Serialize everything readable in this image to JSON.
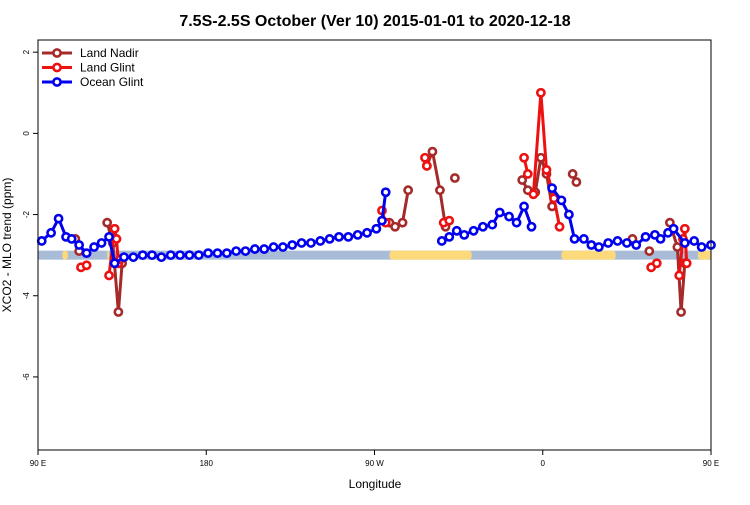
{
  "chart_data": {
    "type": "line",
    "title": "7.5S-2.5S October (Ver 10)   2015-01-01 to 2020-12-18",
    "xlabel": "Longitude",
    "ylabel": "XCO2 - MLO trend (ppm)",
    "xlim": [
      90,
      450
    ],
    "ylim": [
      -7.8,
      2.3
    ],
    "x_ticks": [
      {
        "value": 90,
        "label": "90 E"
      },
      {
        "value": 180,
        "label": "180"
      },
      {
        "value": 270,
        "label": "90 W"
      },
      {
        "value": 360,
        "label": "0"
      },
      {
        "value": 450,
        "label": "90 E"
      }
    ],
    "y_ticks": [
      {
        "value": 2,
        "label": "2"
      },
      {
        "value": 0,
        "label": "0"
      },
      {
        "value": -2,
        "label": "-2"
      },
      {
        "value": -4,
        "label": "-4"
      },
      {
        "value": -6,
        "label": "-6"
      }
    ],
    "grid": false,
    "legend_position": "top-left",
    "legend": [
      "Land Nadir",
      "Land Glint",
      "Ocean Glint"
    ],
    "land_bar": {
      "y": -3.0,
      "ocean_color": "#a8bcd8",
      "land_color": "#fcd97a",
      "land_segments": [
        [
          103,
          106
        ],
        [
          127,
          128
        ],
        [
          278,
          322
        ],
        [
          370,
          399
        ],
        [
          443,
          450
        ]
      ]
    },
    "series": [
      {
        "name": "Land Nadir",
        "color": "#a52a2a",
        "segments": [
          [
            [
              110,
              -2.6
            ],
            [
              112,
              -2.9
            ]
          ],
          [
            [
              127,
              -2.2
            ],
            [
              130,
              -2.7
            ],
            [
              133,
              -4.4
            ],
            [
              135,
              -3.2
            ]
          ],
          [
            [
              278,
              -2.2
            ],
            [
              281,
              -2.3
            ],
            [
              285,
              -2.2
            ],
            [
              288,
              -1.4
            ]
          ],
          [
            [
              298,
              -0.8
            ],
            [
              301,
              -0.45
            ],
            [
              305,
              -1.4
            ],
            [
              308,
              -2.3
            ]
          ],
          [
            [
              349,
              -1.15
            ],
            [
              352,
              -1.4
            ],
            [
              356,
              -1.45
            ],
            [
              359,
              -0.6
            ],
            [
              362,
              -1.0
            ],
            [
              365,
              -1.8
            ]
          ],
          [
            [
              313,
              -1.1
            ]
          ],
          [
            [
              376,
              -1.0
            ],
            [
              378,
              -1.2
            ]
          ],
          [
            [
              408,
              -2.6
            ]
          ],
          [
            [
              417,
              -2.9
            ]
          ],
          [
            [
              428,
              -2.2
            ],
            [
              432,
              -2.8
            ],
            [
              434,
              -4.4
            ],
            [
              436,
              -3.2
            ]
          ]
        ]
      },
      {
        "name": "Land Glint",
        "color": "#ee1111",
        "segments": [
          [
            [
              113,
              -3.3
            ],
            [
              116,
              -3.25
            ]
          ],
          [
            [
              128,
              -3.5
            ],
            [
              131,
              -2.35
            ],
            [
              132,
              -2.6
            ],
            [
              133,
              -3.2
            ],
            [
              134,
              -3.1
            ]
          ],
          [
            [
              274,
              -1.9
            ],
            [
              276,
              -2.2
            ]
          ],
          [
            [
              297,
              -0.6
            ],
            [
              298,
              -0.8
            ]
          ],
          [
            [
              307,
              -2.2
            ],
            [
              310,
              -2.15
            ]
          ],
          [
            [
              350,
              -0.6
            ],
            [
              352,
              -1.0
            ]
          ],
          [
            [
              355,
              -1.5
            ],
            [
              359,
              1.0
            ],
            [
              362,
              -0.9
            ],
            [
              366,
              -1.6
            ],
            [
              369,
              -2.3
            ]
          ],
          [
            [
              418,
              -3.3
            ],
            [
              421,
              -3.2
            ]
          ],
          [
            [
              433,
              -3.5
            ],
            [
              435,
              -2.6
            ],
            [
              436,
              -2.35
            ],
            [
              437,
              -3.2
            ]
          ]
        ]
      },
      {
        "name": "Ocean Glint",
        "color": "#0000ee",
        "segments": [
          [
            [
              92,
              -2.65
            ],
            [
              97,
              -2.45
            ],
            [
              101,
              -2.1
            ],
            [
              105,
              -2.55
            ],
            [
              108,
              -2.6
            ],
            [
              112,
              -2.75
            ],
            [
              116,
              -2.95
            ],
            [
              120,
              -2.8
            ],
            [
              124,
              -2.7
            ],
            [
              128,
              -2.55
            ],
            [
              131,
              -3.2
            ],
            [
              136,
              -3.05
            ],
            [
              141,
              -3.05
            ],
            [
              146,
              -3.0
            ],
            [
              151,
              -3.0
            ],
            [
              156,
              -3.05
            ],
            [
              161,
              -3.0
            ],
            [
              166,
              -3.0
            ],
            [
              171,
              -3.0
            ],
            [
              176,
              -3.0
            ],
            [
              181,
              -2.95
            ],
            [
              186,
              -2.95
            ],
            [
              191,
              -2.95
            ],
            [
              196,
              -2.9
            ],
            [
              201,
              -2.9
            ],
            [
              206,
              -2.85
            ],
            [
              211,
              -2.85
            ],
            [
              216,
              -2.8
            ],
            [
              221,
              -2.8
            ],
            [
              226,
              -2.75
            ],
            [
              231,
              -2.7
            ],
            [
              236,
              -2.7
            ],
            [
              241,
              -2.65
            ],
            [
              246,
              -2.6
            ],
            [
              251,
              -2.55
            ],
            [
              256,
              -2.55
            ],
            [
              261,
              -2.5
            ],
            [
              266,
              -2.45
            ],
            [
              271,
              -2.35
            ],
            [
              274,
              -2.15
            ],
            [
              276,
              -1.45
            ]
          ],
          [
            [
              306,
              -2.65
            ],
            [
              310,
              -2.55
            ],
            [
              314,
              -2.4
            ],
            [
              318,
              -2.5
            ],
            [
              323,
              -2.4
            ],
            [
              328,
              -2.3
            ],
            [
              333,
              -2.25
            ],
            [
              337,
              -1.95
            ],
            [
              342,
              -2.05
            ],
            [
              346,
              -2.2
            ],
            [
              350,
              -1.8
            ],
            [
              354,
              -2.3
            ]
          ],
          [
            [
              365,
              -1.35
            ],
            [
              370,
              -1.65
            ],
            [
              374,
              -2.0
            ],
            [
              377,
              -2.6
            ],
            [
              382,
              -2.6
            ],
            [
              386,
              -2.75
            ],
            [
              390,
              -2.8
            ],
            [
              395,
              -2.7
            ],
            [
              400,
              -2.65
            ],
            [
              405,
              -2.7
            ],
            [
              410,
              -2.75
            ],
            [
              415,
              -2.55
            ],
            [
              420,
              -2.5
            ],
            [
              423,
              -2.6
            ],
            [
              427,
              -2.45
            ],
            [
              430,
              -2.35
            ],
            [
              436,
              -2.7
            ],
            [
              441,
              -2.65
            ],
            [
              445,
              -2.8
            ],
            [
              450,
              -2.75
            ]
          ]
        ]
      }
    ]
  }
}
